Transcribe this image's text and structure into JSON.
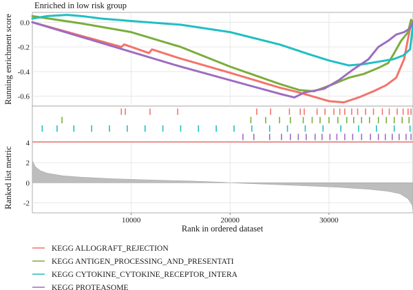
{
  "chart_data": {
    "type": "line",
    "title": "Enriched in low risk group",
    "xlabel": "Rank in ordered dataset",
    "ylabel_top": "Running enrichment score",
    "ylabel_bottom": "Ranked list metric",
    "xlim": [
      0,
      38500
    ],
    "x_ticks": [
      10000,
      20000,
      30000
    ],
    "es_ylim": [
      -0.68,
      0.08
    ],
    "es_ticks": [
      0.0,
      -0.2,
      -0.4,
      -0.6
    ],
    "metric_ylim": [
      -3,
      4
    ],
    "metric_ticks": [
      4,
      2,
      0,
      -2
    ],
    "grid": true,
    "legend_position": "bottom-left",
    "series": [
      {
        "name": "KEGG_ALLOGRAFT_REJECTION",
        "color": "#f3736b",
        "es": [
          [
            0,
            0.0
          ],
          [
            9000,
            -0.2
          ],
          [
            9300,
            -0.18
          ],
          [
            11800,
            -0.25
          ],
          [
            12100,
            -0.22
          ],
          [
            14800,
            -0.29
          ],
          [
            20000,
            -0.41
          ],
          [
            25000,
            -0.53
          ],
          [
            27000,
            -0.57
          ],
          [
            30000,
            -0.64
          ],
          [
            31500,
            -0.65
          ],
          [
            33000,
            -0.61
          ],
          [
            34500,
            -0.56
          ],
          [
            35800,
            -0.51
          ],
          [
            36800,
            -0.45
          ],
          [
            37600,
            -0.3
          ],
          [
            38200,
            -0.05
          ],
          [
            38500,
            0.0
          ]
        ],
        "hits": [
          9000,
          9400,
          11900,
          14700,
          22700,
          24100,
          26000,
          27100,
          27500,
          28800,
          29600,
          30500,
          31100,
          31600,
          32300,
          32900,
          33700,
          34500,
          35400,
          36100,
          36900,
          37500,
          38000,
          38300
        ]
      },
      {
        "name": "KEGG_ANTIGEN_PROCESSING_AND_PRESENTATI",
        "color": "#7aad3a",
        "es": [
          [
            0,
            0.05
          ],
          [
            5000,
            -0.01
          ],
          [
            10000,
            -0.08
          ],
          [
            15000,
            -0.2
          ],
          [
            20000,
            -0.36
          ],
          [
            25000,
            -0.5
          ],
          [
            27000,
            -0.55
          ],
          [
            28500,
            -0.56
          ],
          [
            30500,
            -0.5
          ],
          [
            32000,
            -0.45
          ],
          [
            33500,
            -0.42
          ],
          [
            35000,
            -0.37
          ],
          [
            36000,
            -0.33
          ],
          [
            36600,
            -0.25
          ],
          [
            37300,
            -0.15
          ],
          [
            38000,
            -0.08
          ],
          [
            38300,
            0.02
          ],
          [
            38500,
            0.0
          ]
        ],
        "hits": [
          3000,
          22100,
          23600,
          25000,
          26100,
          27400,
          28300,
          29100,
          30000,
          30900,
          31800,
          32500,
          33300,
          34100,
          35000,
          35800,
          36600,
          37400,
          38100
        ]
      },
      {
        "name": "KEGG_CYTOKINE_CYTOKINE_RECEPTOR_INTERA",
        "color": "#1fbfc4",
        "es": [
          [
            0,
            0.03
          ],
          [
            1500,
            0.05
          ],
          [
            3500,
            0.06
          ],
          [
            5000,
            0.05
          ],
          [
            7000,
            0.03
          ],
          [
            10000,
            0.01
          ],
          [
            15000,
            -0.02
          ],
          [
            20000,
            -0.08
          ],
          [
            25000,
            -0.18
          ],
          [
            28000,
            -0.26
          ],
          [
            30000,
            -0.31
          ],
          [
            32000,
            -0.35
          ],
          [
            33500,
            -0.34
          ],
          [
            35000,
            -0.32
          ],
          [
            36500,
            -0.3
          ],
          [
            37500,
            -0.27
          ],
          [
            38200,
            -0.22
          ],
          [
            38500,
            -0.02
          ]
        ],
        "hits": [
          1000,
          2500,
          4200,
          6000,
          7800,
          9600,
          11400,
          13200,
          15000,
          16800,
          18600,
          20400,
          22200,
          24000,
          25800,
          27600,
          29400,
          31200,
          33000,
          34800,
          36600,
          38200
        ]
      },
      {
        "name": "KEGG_PROTEASOME",
        "color": "#9e6cc0",
        "es": [
          [
            0,
            0.0
          ],
          [
            5000,
            -0.12
          ],
          [
            10000,
            -0.24
          ],
          [
            15000,
            -0.36
          ],
          [
            20000,
            -0.47
          ],
          [
            25000,
            -0.58
          ],
          [
            26500,
            -0.61
          ],
          [
            27500,
            -0.57
          ],
          [
            29500,
            -0.54
          ],
          [
            31000,
            -0.47
          ],
          [
            32500,
            -0.38
          ],
          [
            34000,
            -0.3
          ],
          [
            35000,
            -0.2
          ],
          [
            36000,
            -0.15
          ],
          [
            36800,
            -0.1
          ],
          [
            37600,
            -0.08
          ],
          [
            38200,
            -0.05
          ],
          [
            38500,
            0.0
          ]
        ],
        "hits": [
          21300,
          22400,
          24000,
          25200,
          26100,
          26900,
          27700,
          28600,
          29300,
          30100,
          30800,
          31600,
          32400,
          33300,
          34200,
          35000,
          35700,
          36400,
          37100,
          37800,
          38300
        ]
      }
    ],
    "metric_curve": [
      [
        0,
        2.2
      ],
      [
        300,
        1.6
      ],
      [
        800,
        1.2
      ],
      [
        1500,
        0.95
      ],
      [
        3000,
        0.7
      ],
      [
        5000,
        0.55
      ],
      [
        8000,
        0.4
      ],
      [
        12000,
        0.27
      ],
      [
        16000,
        0.17
      ],
      [
        19250,
        0.05
      ],
      [
        20000,
        0.0
      ],
      [
        23000,
        -0.12
      ],
      [
        27000,
        -0.28
      ],
      [
        31000,
        -0.45
      ],
      [
        34000,
        -0.65
      ],
      [
        36000,
        -0.85
      ],
      [
        37200,
        -1.1
      ],
      [
        38000,
        -1.6
      ],
      [
        38400,
        -2.2
      ],
      [
        38500,
        -2.8
      ]
    ]
  }
}
